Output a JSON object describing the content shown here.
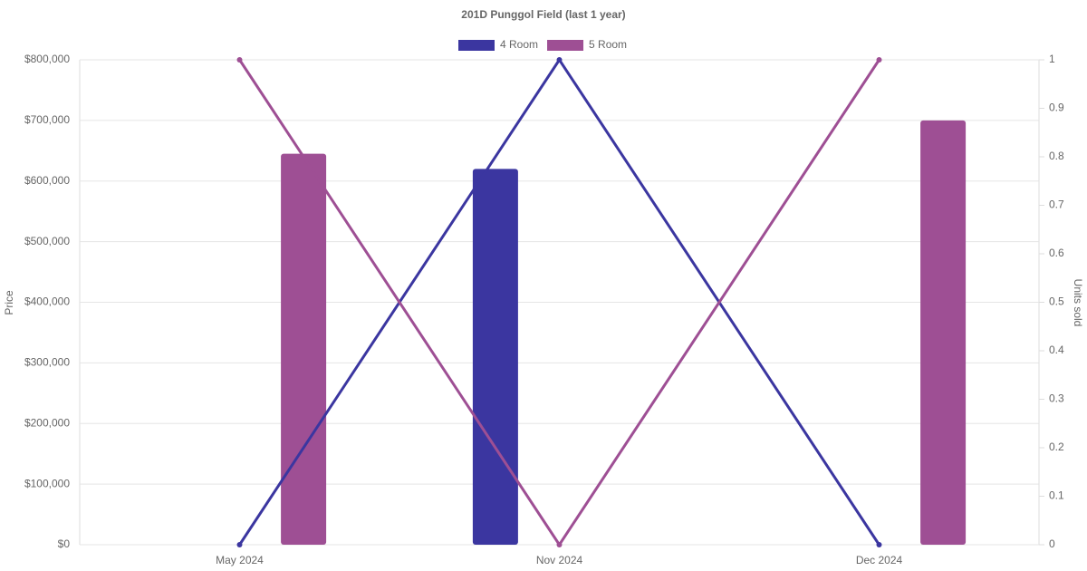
{
  "chart_data": {
    "type": "bar-line",
    "title": "201D Punggol Field (last 1 year)",
    "y_label": "Price",
    "y2_label": "Units sold",
    "categories": [
      "May 2024",
      "Nov 2024",
      "Dec 2024"
    ],
    "series": [
      {
        "name": "4 Room",
        "color": "#3b36a0",
        "values": [
          null,
          620000,
          null
        ],
        "units": [
          0,
          1,
          0
        ]
      },
      {
        "name": "5 Room",
        "color": "#9e4f94",
        "values": [
          645000,
          null,
          700000
        ],
        "units": [
          1,
          0,
          1
        ]
      }
    ],
    "ylim": [
      0,
      800000
    ],
    "yticks": [
      {
        "value": 0,
        "label": "$0"
      },
      {
        "value": 100000,
        "label": "$100,000"
      },
      {
        "value": 200000,
        "label": "$200,000"
      },
      {
        "value": 300000,
        "label": "$300,000"
      },
      {
        "value": 400000,
        "label": "$400,000"
      },
      {
        "value": 500000,
        "label": "$500,000"
      },
      {
        "value": 600000,
        "label": "$600,000"
      },
      {
        "value": 700000,
        "label": "$700,000"
      },
      {
        "value": 800000,
        "label": "$800,000"
      }
    ],
    "y2lim": [
      0,
      1
    ],
    "y2ticks": [
      0,
      0.1,
      0.2,
      0.3,
      0.4,
      0.5,
      0.6,
      0.7,
      0.8,
      0.9,
      1
    ],
    "grid": true,
    "legend": "top"
  }
}
